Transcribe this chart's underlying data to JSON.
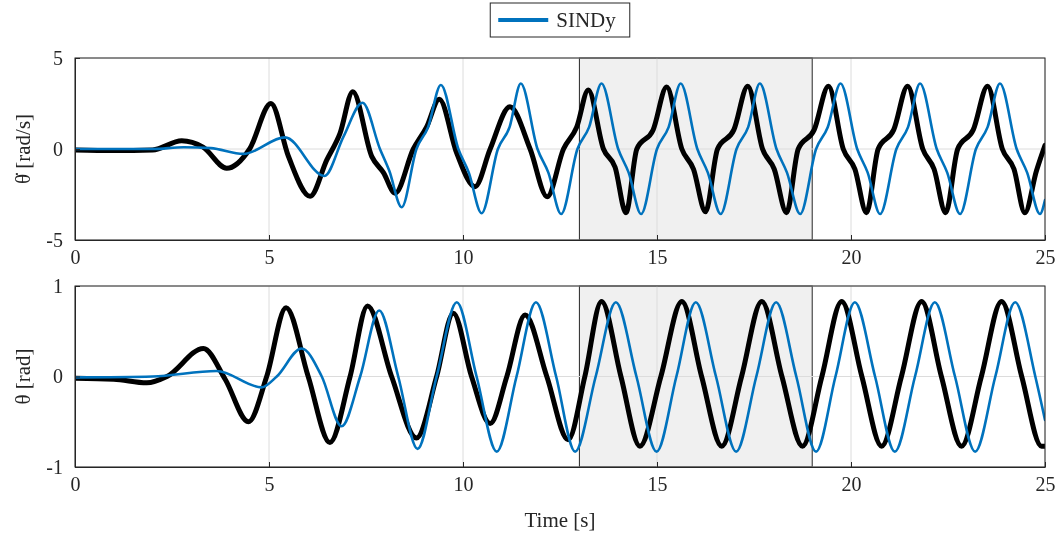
{
  "chart_data": [
    {
      "type": "line",
      "ylabel": "θ̇ [rad/s]",
      "xlim": [
        0,
        25
      ],
      "xticks": [
        0,
        5,
        10,
        15,
        20,
        25
      ],
      "ylim": [
        -5,
        5
      ],
      "yticks": [
        -5,
        0,
        5
      ],
      "grid": true,
      "legend": "top",
      "line_style": "solid",
      "bands": [
        {
          "axis": "x",
          "from": 13,
          "to": 19,
          "color": "#f0f0f0"
        }
      ],
      "series": [
        {
          "color": "#000000",
          "x": [
            0,
            1,
            2,
            2.75,
            3.3,
            3.91,
            4.5,
            5.05,
            5.5,
            6.06,
            6.49,
            6.83,
            7.16,
            7.65,
            7.95,
            8.25,
            8.72,
            9.06,
            9.39,
            9.84,
            10.31,
            10.7,
            11.21,
            11.73,
            12.17,
            12.59,
            12.93,
            13.23,
            13.62,
            13.92,
            14.2,
            14.48,
            14.9,
            15.25,
            15.64,
            15.94,
            16.25,
            16.56,
            16.98,
            17.34,
            17.72,
            18.02,
            18.34,
            18.64,
            19.05,
            19.42,
            19.8,
            20.1,
            20.4,
            20.7,
            21.1,
            21.46,
            21.85,
            22.14,
            22.44,
            22.75,
            23.15,
            23.52,
            23.9,
            24.2,
            24.48,
            24.78,
            25
          ],
          "values": [
            -0.05,
            -0.08,
            -0.05,
            0.45,
            0.1,
            -1.06,
            0,
            2.5,
            -0.4,
            -2.6,
            -0.6,
            0.86,
            3.15,
            -0.42,
            -1.3,
            -2.43,
            0,
            1.2,
            2.73,
            -0.24,
            -2.07,
            0,
            2.32,
            0,
            -2.62,
            0,
            1.2,
            3.24,
            0,
            -1.0,
            -3.5,
            0,
            1.05,
            3.4,
            0,
            -1.1,
            -3.45,
            0,
            1.05,
            3.45,
            0,
            -1.1,
            -3.5,
            0,
            1.05,
            3.45,
            0,
            -1.1,
            -3.5,
            0,
            1.05,
            3.45,
            0,
            -1.1,
            -3.5,
            0,
            1.05,
            3.45,
            0,
            -1.1,
            -3.5,
            -1.2,
            0.2
          ]
        },
        {
          "name": "SINDy",
          "color": "#0072bd",
          "x": [
            0,
            2,
            2.8,
            3.5,
            4.34,
            5.41,
            6.43,
            6.92,
            7.41,
            7.86,
            8.1,
            8.42,
            8.8,
            9.1,
            9.43,
            9.88,
            10.15,
            10.48,
            10.9,
            11.2,
            11.49,
            11.92,
            12.2,
            12.53,
            12.95,
            13.25,
            13.57,
            14.0,
            14.27,
            14.59,
            15.0,
            15.3,
            15.61,
            16.04,
            16.31,
            16.64,
            17.05,
            17.35,
            17.65,
            18.08,
            18.35,
            18.69,
            19.1,
            19.4,
            19.73,
            20.16,
            20.43,
            20.75,
            21.17,
            21.47,
            21.78,
            22.21,
            22.48,
            22.81,
            23.22,
            23.52,
            23.84,
            24.27,
            24.54,
            24.87,
            25
          ],
          "values": [
            0,
            0,
            0.1,
            0.05,
            -0.27,
            0.64,
            -1.48,
            0.68,
            2.54,
            0,
            -1.2,
            -3.2,
            0,
            1.2,
            3.52,
            0,
            -1.3,
            -3.53,
            0,
            1.2,
            3.6,
            0,
            -1.3,
            -3.57,
            0,
            1.2,
            3.6,
            0,
            -1.3,
            -3.57,
            0,
            1.2,
            3.6,
            0,
            -1.3,
            -3.57,
            0,
            1.2,
            3.6,
            0,
            -1.3,
            -3.57,
            0,
            1.2,
            3.6,
            0,
            -1.3,
            -3.57,
            0,
            1.2,
            3.6,
            0,
            -1.3,
            -3.57,
            0,
            1.2,
            3.6,
            0,
            -1.3,
            -3.57,
            -2.8
          ]
        }
      ]
    },
    {
      "type": "line",
      "xlabel": "Time [s]",
      "ylabel": "θ [rad]",
      "xlim": [
        0,
        25
      ],
      "xticks": [
        0,
        5,
        10,
        15,
        20,
        25
      ],
      "ylim": [
        -1,
        1
      ],
      "yticks": [
        -1,
        0,
        1
      ],
      "grid": true,
      "line_style": "solid",
      "bands": [
        {
          "axis": "x",
          "from": 13,
          "to": 19,
          "color": "#f0f0f0"
        }
      ],
      "series": [
        {
          "color": "#000000",
          "x": [
            0,
            1,
            1.85,
            2.37,
            3.31,
            3.87,
            4.47,
            4.94,
            5.44,
            6.01,
            6.57,
            7.09,
            7.54,
            8.16,
            8.8,
            9.32,
            9.75,
            10.22,
            10.7,
            11.13,
            11.6,
            12.16,
            12.71,
            13.14,
            13.57,
            14.07,
            14.56,
            15.1,
            15.64,
            16.15,
            16.67,
            17.18,
            17.7,
            18.22,
            18.75,
            19.25,
            19.76,
            20.28,
            20.79,
            21.3,
            21.82,
            22.33,
            22.85,
            23.36,
            23.88,
            24.4,
            24.91,
            25
          ],
          "values": [
            -0.02,
            -0.03,
            -0.07,
            0,
            0.31,
            -0.03,
            -0.5,
            0,
            0.76,
            0,
            -0.73,
            0,
            0.78,
            0,
            -0.68,
            0,
            0.7,
            0,
            -0.52,
            0,
            0.68,
            0,
            -0.7,
            0,
            0.83,
            0,
            -0.77,
            0,
            0.83,
            0,
            -0.77,
            0,
            0.83,
            0,
            -0.77,
            0,
            0.83,
            0,
            -0.77,
            0,
            0.83,
            0,
            -0.77,
            0,
            0.83,
            0,
            -0.77,
            -0.77
          ]
        },
        {
          "color": "#0072bd",
          "x": [
            0,
            2,
            3.65,
            4.81,
            5.2,
            5.84,
            6.36,
            6.87,
            7.35,
            7.84,
            8.33,
            8.83,
            9.32,
            9.84,
            10.35,
            10.87,
            11.38,
            11.88,
            12.4,
            12.89,
            13.42,
            13.94,
            14.47,
            14.99,
            15.5,
            16.0,
            16.52,
            17.04,
            17.56,
            18.07,
            18.59,
            19.1,
            19.6,
            20.1,
            20.62,
            21.13,
            21.65,
            22.16,
            22.68,
            23.2,
            23.72,
            24.23,
            24.75,
            25
          ],
          "values": [
            -0.01,
            0,
            0.06,
            -0.12,
            0,
            0.31,
            0,
            -0.55,
            0,
            0.73,
            0,
            -0.8,
            0,
            0.82,
            0,
            -0.83,
            0,
            0.82,
            0,
            -0.83,
            0,
            0.82,
            0,
            -0.83,
            0,
            0.82,
            0,
            -0.83,
            0,
            0.82,
            0,
            -0.83,
            0,
            0.82,
            0,
            -0.83,
            0,
            0.82,
            0,
            -0.83,
            0,
            0.82,
            0,
            -0.48
          ]
        }
      ]
    }
  ]
}
